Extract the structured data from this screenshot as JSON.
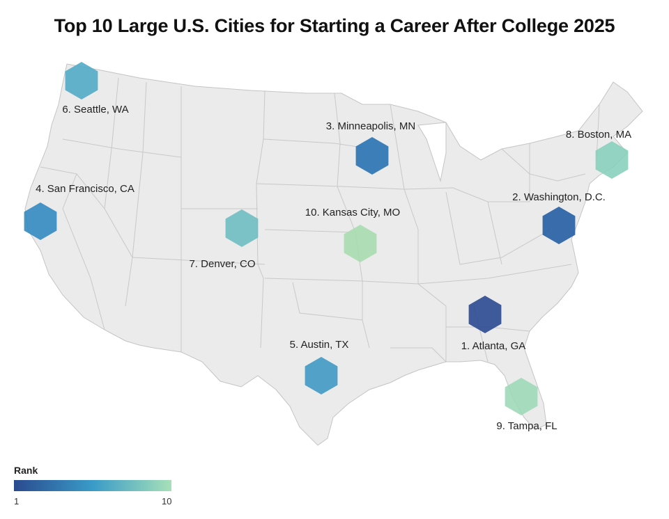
{
  "title": "Top 10 Large U.S. Cities for Starting a Career After College 2025",
  "legend": {
    "title": "Rank",
    "min_label": "1",
    "max_label": "10",
    "color_low": "#2a4a8f",
    "color_mid": "#3a9bc8",
    "color_high": "#a6e0b8"
  },
  "cities": [
    {
      "rank": 1,
      "label": "1. Atlanta, GA",
      "color": "#27468e"
    },
    {
      "rank": 2,
      "label": "2. Washington, D.C.",
      "color": "#1f5aa0"
    },
    {
      "rank": 3,
      "label": "3. Minneapolis, MN",
      "color": "#2370b0"
    },
    {
      "rank": 4,
      "label": "4. San Francisco, CA",
      "color": "#2f86bf"
    },
    {
      "rank": 5,
      "label": "5. Austin, TX",
      "color": "#3b96c4"
    },
    {
      "rank": 6,
      "label": "6. Seattle, WA",
      "color": "#4ea8c6"
    },
    {
      "rank": 7,
      "label": "7. Denver, CO",
      "color": "#6bbcc2"
    },
    {
      "rank": 8,
      "label": "8. Boston, MA",
      "color": "#86cfbb"
    },
    {
      "rank": 9,
      "label": "9. Tampa, FL",
      "color": "#9dd8b6"
    },
    {
      "rank": 10,
      "label": "10. Kansas City, MO",
      "color": "#a6dcae"
    }
  ],
  "map_colors": {
    "land": "#ebebeb",
    "border": "#c4c4c4"
  }
}
